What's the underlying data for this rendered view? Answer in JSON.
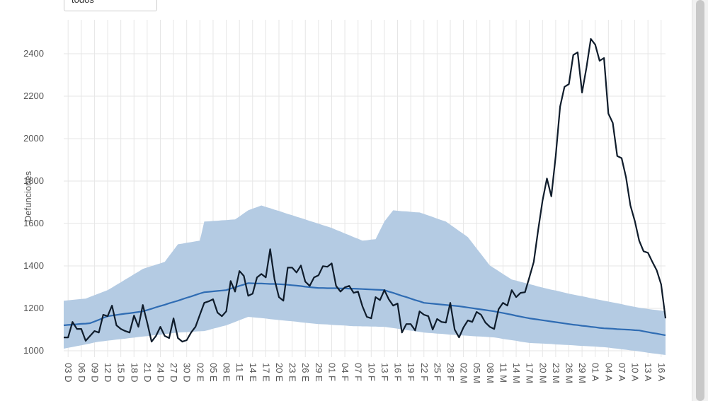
{
  "filter": {
    "selected": "todos"
  },
  "chart_data": {
    "type": "line",
    "y_label": "Defunciones",
    "ylim": [
      970,
      2560
    ],
    "yticks": [
      1000,
      1200,
      1400,
      1600,
      1800,
      2000,
      2200,
      2400
    ],
    "grid": true,
    "categories": [
      null,
      "03 D",
      null,
      null,
      "06 D",
      null,
      null,
      "09 D",
      null,
      null,
      "12 D",
      null,
      null,
      "15 D",
      null,
      null,
      "18 D",
      null,
      null,
      "21 D",
      null,
      null,
      "24 D",
      null,
      null,
      "27 D",
      null,
      null,
      "30 D",
      null,
      null,
      "02 E",
      null,
      null,
      "05 E",
      null,
      null,
      "08 E",
      null,
      null,
      "11 E",
      null,
      null,
      "14 E",
      null,
      null,
      "17 E",
      null,
      null,
      "20 E",
      null,
      null,
      "23 E",
      null,
      null,
      "26 E",
      null,
      null,
      "29 E",
      null,
      null,
      "01 F",
      null,
      null,
      "04 F",
      null,
      null,
      "07 F",
      null,
      null,
      "10 F",
      null,
      null,
      "13 F",
      null,
      null,
      "16 F",
      null,
      null,
      "19 F",
      null,
      null,
      "22 F",
      null,
      null,
      "25 F",
      null,
      null,
      "28 F",
      null,
      null,
      "02 M",
      null,
      null,
      "05 M",
      null,
      null,
      "08 M",
      null,
      null,
      "11 M",
      null,
      null,
      "14 M",
      null,
      null,
      "17 M",
      null,
      null,
      "20 M",
      null,
      null,
      "23 M",
      null,
      null,
      "26 M",
      null,
      null,
      "29 M",
      null,
      null,
      "01 A",
      null,
      null,
      "04 A",
      null,
      null,
      "07 A",
      null,
      null,
      "10 A",
      null,
      null,
      "13 A",
      null,
      null,
      "16 A",
      null
    ],
    "band": {
      "color": "#b4cbe3",
      "lower": [
        1010,
        1014,
        1018,
        1022,
        1026,
        1030,
        1034,
        1039,
        1043,
        1045,
        1048,
        1050,
        1053,
        1055,
        1057,
        1060,
        1062,
        1065,
        1067,
        1069,
        1072,
        1074,
        1076,
        1079,
        1081,
        1084,
        1086,
        1087,
        1088,
        1089,
        1091,
        1092,
        1093,
        1098,
        1104,
        1109,
        1115,
        1120,
        1128,
        1136,
        1144,
        1152,
        1160,
        1158,
        1156,
        1154,
        1152,
        1149,
        1147,
        1145,
        1143,
        1141,
        1139,
        1137,
        1134,
        1132,
        1130,
        1128,
        1126,
        1125,
        1124,
        1122,
        1121,
        1120,
        1119,
        1117,
        1116,
        1116,
        1115,
        1115,
        1114,
        1114,
        1113,
        1113,
        1110,
        1107,
        1104,
        1101,
        1098,
        1095,
        1092,
        1089,
        1086,
        1084,
        1083,
        1081,
        1080,
        1078,
        1076,
        1075,
        1073,
        1072,
        1071,
        1069,
        1068,
        1067,
        1066,
        1064,
        1063,
        1060,
        1056,
        1053,
        1050,
        1047,
        1043,
        1040,
        1037,
        1036,
        1035,
        1034,
        1033,
        1032,
        1030,
        1029,
        1028,
        1027,
        1026,
        1024,
        1023,
        1022,
        1021,
        1020,
        1018,
        1017,
        1015,
        1012,
        1010,
        1007,
        1005,
        1002,
        1000,
        997,
        994,
        991,
        988,
        986,
        983,
        980
      ],
      "upper": [
        1236,
        1238,
        1240,
        1242,
        1244,
        1246,
        1254,
        1262,
        1270,
        1278,
        1286,
        1298,
        1311,
        1323,
        1336,
        1348,
        1361,
        1373,
        1386,
        1393,
        1399,
        1406,
        1412,
        1419,
        1447,
        1474,
        1502,
        1505,
        1509,
        1512,
        1516,
        1519,
        1609,
        1610,
        1612,
        1613,
        1615,
        1616,
        1618,
        1619,
        1633,
        1648,
        1662,
        1670,
        1677,
        1685,
        1678,
        1672,
        1665,
        1659,
        1652,
        1645,
        1639,
        1632,
        1626,
        1619,
        1612,
        1606,
        1599,
        1592,
        1586,
        1579,
        1570,
        1562,
        1553,
        1545,
        1536,
        1528,
        1519,
        1521,
        1524,
        1526,
        1568,
        1609,
        1636,
        1662,
        1660,
        1658,
        1657,
        1655,
        1653,
        1652,
        1645,
        1638,
        1631,
        1623,
        1616,
        1609,
        1594,
        1580,
        1565,
        1551,
        1536,
        1509,
        1482,
        1456,
        1429,
        1402,
        1389,
        1376,
        1362,
        1349,
        1336,
        1331,
        1325,
        1320,
        1314,
        1309,
        1303,
        1298,
        1293,
        1288,
        1284,
        1279,
        1274,
        1269,
        1265,
        1261,
        1257,
        1253,
        1248,
        1244,
        1240,
        1236,
        1232,
        1228,
        1224,
        1220,
        1215,
        1211,
        1207,
        1203,
        1200,
        1197,
        1194,
        1192,
        1189,
        1186
      ]
    },
    "series": [
      {
        "color": "#2f6cb3",
        "values": [
          1120,
          1122,
          1123,
          1125,
          1127,
          1128,
          1130,
          1138,
          1146,
          1155,
          1163,
          1166,
          1169,
          1172,
          1175,
          1177,
          1180,
          1183,
          1186,
          1192,
          1198,
          1205,
          1211,
          1217,
          1224,
          1230,
          1236,
          1243,
          1250,
          1256,
          1263,
          1270,
          1276,
          1278,
          1280,
          1282,
          1284,
          1286,
          1293,
          1299,
          1306,
          1312,
          1319,
          1318,
          1317,
          1317,
          1316,
          1315,
          1315,
          1314,
          1313,
          1311,
          1309,
          1307,
          1305,
          1302,
          1300,
          1298,
          1296,
          1296,
          1295,
          1295,
          1295,
          1294,
          1294,
          1293,
          1293,
          1292,
          1291,
          1290,
          1289,
          1288,
          1287,
          1286,
          1279,
          1273,
          1266,
          1259,
          1253,
          1246,
          1239,
          1233,
          1226,
          1224,
          1222,
          1220,
          1218,
          1216,
          1214,
          1212,
          1210,
          1207,
          1204,
          1201,
          1198,
          1195,
          1192,
          1189,
          1186,
          1182,
          1178,
          1174,
          1170,
          1165,
          1161,
          1157,
          1153,
          1150,
          1147,
          1144,
          1141,
          1138,
          1135,
          1132,
          1129,
          1126,
          1123,
          1121,
          1118,
          1116,
          1113,
          1111,
          1108,
          1106,
          1105,
          1104,
          1102,
          1101,
          1100,
          1099,
          1097,
          1096,
          1092,
          1088,
          1084,
          1081,
          1077,
          1073
        ]
      },
      {
        "color": "#0f1c2b",
        "values": [
          1063,
          1063,
          1136,
          1103,
          1103,
          1047,
          1070,
          1093,
          1086,
          1170,
          1163,
          1213,
          1120,
          1103,
          1093,
          1086,
          1166,
          1113,
          1216,
          1133,
          1043,
          1070,
          1113,
          1070,
          1060,
          1153,
          1060,
          1043,
          1050,
          1086,
          1113,
          1170,
          1226,
          1233,
          1243,
          1180,
          1163,
          1186,
          1329,
          1279,
          1376,
          1353,
          1259,
          1269,
          1346,
          1362,
          1346,
          1479,
          1336,
          1253,
          1236,
          1392,
          1392,
          1369,
          1402,
          1326,
          1306,
          1346,
          1356,
          1399,
          1396,
          1412,
          1306,
          1279,
          1299,
          1306,
          1273,
          1279,
          1210,
          1160,
          1153,
          1253,
          1239,
          1286,
          1243,
          1213,
          1223,
          1086,
          1126,
          1126,
          1096,
          1186,
          1170,
          1163,
          1100,
          1150,
          1136,
          1133,
          1226,
          1100,
          1063,
          1110,
          1143,
          1136,
          1183,
          1170,
          1133,
          1113,
          1103,
          1196,
          1226,
          1213,
          1286,
          1253,
          1273,
          1276,
          1346,
          1419,
          1569,
          1708,
          1812,
          1728,
          1918,
          2151,
          2244,
          2257,
          2394,
          2407,
          2217,
          2334,
          2470,
          2443,
          2367,
          2380,
          2118,
          2074,
          1918,
          1908,
          1818,
          1685,
          1612,
          1519,
          1469,
          1462,
          1419,
          1379,
          1313,
          1153
        ]
      }
    ]
  }
}
